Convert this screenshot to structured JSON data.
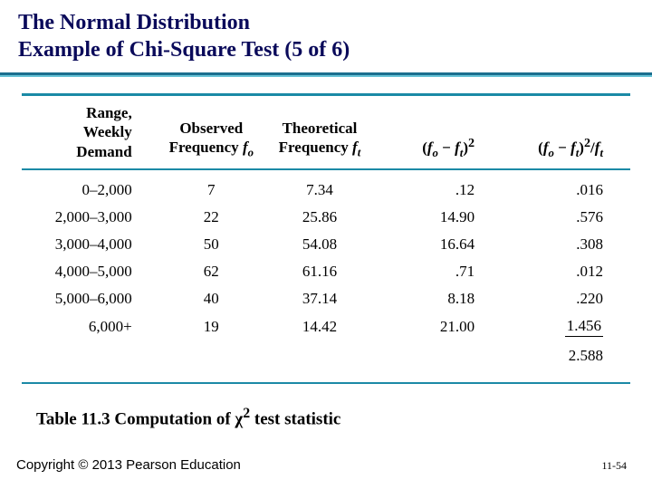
{
  "title": {
    "line1": "The Normal Distribution",
    "line2": "Example of Chi-Square Test (5 of 6)"
  },
  "table": {
    "headers": {
      "range_l1": "Range,",
      "range_l2": "Weekly Demand",
      "obs_l1": "Observed",
      "theo_l1": "Theoretical"
    },
    "rows": [
      {
        "range": "0–2,000",
        "obs": "7",
        "theo": "7.34",
        "sq": ".12",
        "ratio": ".016"
      },
      {
        "range": "2,000–3,000",
        "obs": "22",
        "theo": "25.86",
        "sq": "14.90",
        "ratio": ".576"
      },
      {
        "range": "3,000–4,000",
        "obs": "50",
        "theo": "54.08",
        "sq": "16.64",
        "ratio": ".308"
      },
      {
        "range": "4,000–5,000",
        "obs": "62",
        "theo": "61.16",
        "sq": ".71",
        "ratio": ".012"
      },
      {
        "range": "5,000–6,000",
        "obs": "40",
        "theo": "37.14",
        "sq": "8.18",
        "ratio": ".220"
      },
      {
        "range": "6,000+",
        "obs": "19",
        "theo": "14.42",
        "sq": "21.00",
        "ratio": "1.456"
      }
    ],
    "sum": "2.588"
  },
  "caption_prefix": "Table 11.3   Computation of ",
  "caption_suffix": " test statistic",
  "copyright": "Copyright © 2013 Pearson Education",
  "pagenum": "11-54"
}
